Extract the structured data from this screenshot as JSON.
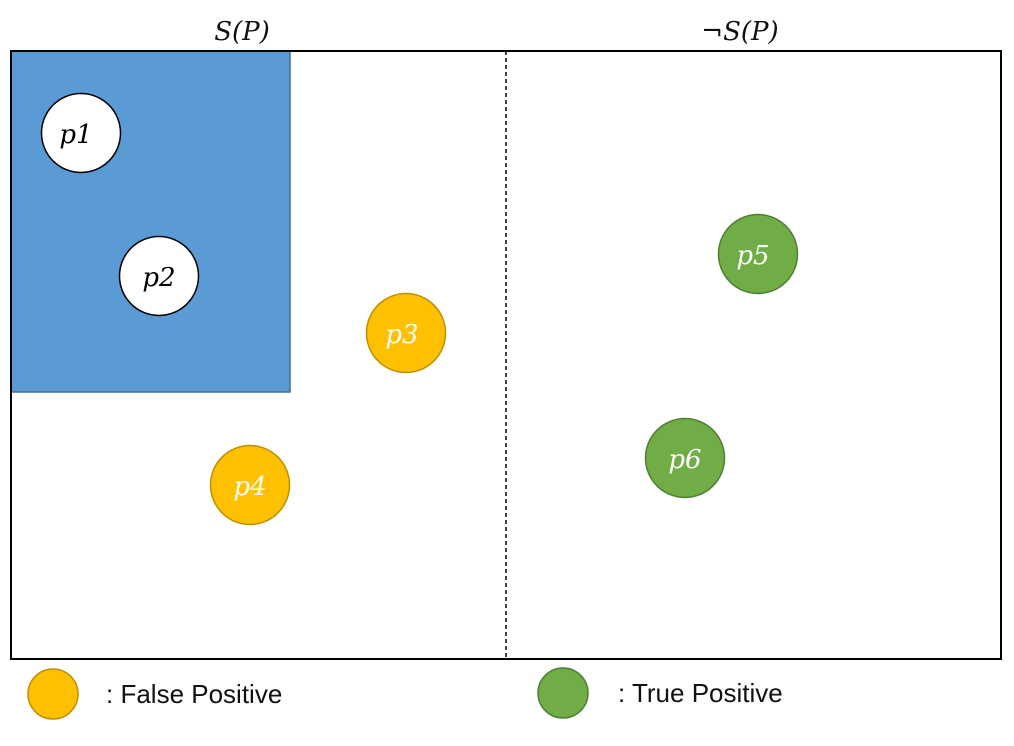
{
  "headers": {
    "left_label": "S(P)",
    "right_label": "¬S(P)"
  },
  "points": [
    {
      "id": "p1",
      "label": "p1",
      "category": "white"
    },
    {
      "id": "p2",
      "label": "p2",
      "category": "white"
    },
    {
      "id": "p3",
      "label": "p3",
      "category": "false_positive"
    },
    {
      "id": "p4",
      "label": "p4",
      "category": "false_positive"
    },
    {
      "id": "p5",
      "label": "p5",
      "category": "true_positive"
    },
    {
      "id": "p6",
      "label": "p6",
      "category": "true_positive"
    }
  ],
  "legend": {
    "false_positive_label": ": False Positive",
    "true_positive_label": ": True Positive"
  },
  "colors": {
    "region_fill": "#5b9bd5",
    "region_stroke": "#41719c",
    "false_positive_fill": "#ffc000",
    "false_positive_stroke": "#bf9000",
    "true_positive_fill": "#70ad47",
    "true_positive_stroke": "#507e32",
    "white_fill": "#ffffff",
    "white_stroke": "#000000",
    "frame_stroke": "#000000"
  }
}
